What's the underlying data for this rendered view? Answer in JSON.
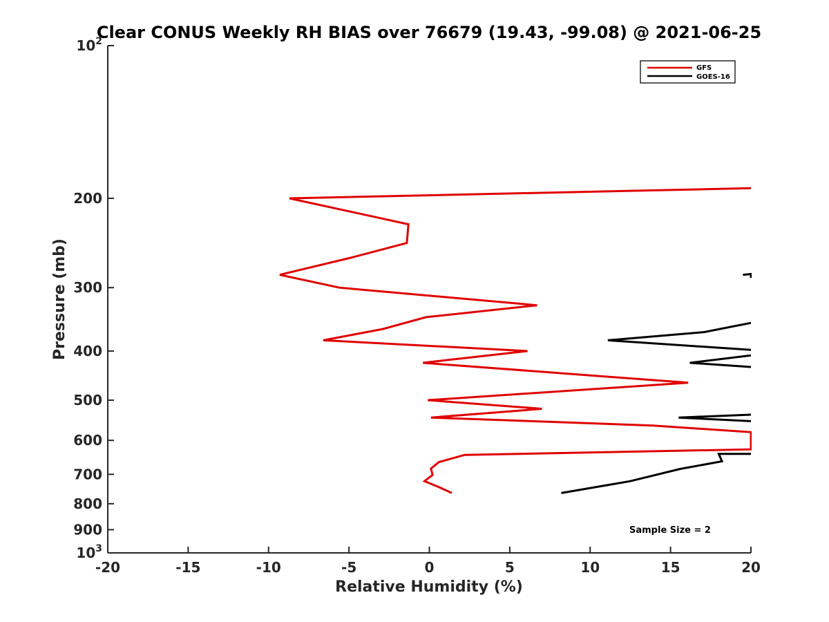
{
  "chart_data": {
    "type": "line",
    "title": "Clear CONUS Weekly RH BIAS over 76679 (19.43, -99.08) @ 2021-06-25",
    "xlabel": "Relative Humidity (%)",
    "ylabel": "Pressure (mb)",
    "xlim": [
      -20,
      20
    ],
    "ylim": [
      100,
      1000
    ],
    "yscale": "log",
    "y_reversed": true,
    "x_ticks": [
      -20,
      -15,
      -10,
      -5,
      0,
      5,
      10,
      15,
      20
    ],
    "x_tick_labels": [
      "-20",
      "-15",
      "-10",
      "-5",
      "0",
      "5",
      "10",
      "15",
      "20"
    ],
    "y_ticks": [
      100,
      200,
      300,
      400,
      500,
      600,
      700,
      800,
      900,
      1000
    ],
    "y_tick_labels": [
      {
        "base": "10",
        "exp": "2"
      },
      {
        "base": "200",
        "exp": ""
      },
      {
        "base": "300",
        "exp": ""
      },
      {
        "base": "400",
        "exp": ""
      },
      {
        "base": "500",
        "exp": ""
      },
      {
        "base": "600",
        "exp": ""
      },
      {
        "base": "700",
        "exp": ""
      },
      {
        "base": "800",
        "exp": ""
      },
      {
        "base": "900",
        "exp": ""
      },
      {
        "base": "10",
        "exp": "3"
      }
    ],
    "grid": false,
    "legend_position": "top-right",
    "series": [
      {
        "name": "GFS",
        "color": "#e00000",
        "points": [
          [
            20,
            191
          ],
          [
            -8.7,
            200
          ],
          [
            -1.3,
            225
          ],
          [
            -1.4,
            245
          ],
          [
            -4.9,
            262
          ],
          [
            -9.3,
            283
          ],
          [
            -5.6,
            300
          ],
          [
            6.7,
            325
          ],
          [
            -0.2,
            343
          ],
          [
            -2.9,
            362
          ],
          [
            -6.6,
            381
          ],
          [
            6.1,
            400
          ],
          [
            -0.4,
            422
          ],
          [
            16.1,
            462
          ],
          [
            -0.1,
            500
          ],
          [
            7.0,
            520
          ],
          [
            0.1,
            541
          ],
          [
            13.9,
            561
          ],
          [
            20,
            578
          ],
          [
            20,
            625
          ],
          [
            2.2,
            641
          ],
          [
            0.6,
            662
          ],
          [
            0.1,
            682
          ],
          [
            0.2,
            702
          ],
          [
            -0.3,
            722
          ],
          [
            0.6,
            742
          ],
          [
            1.4,
            762
          ]
        ]
      },
      {
        "name": "GOES-16",
        "color": "#000000",
        "points": [
          [
            19.5,
            283
          ],
          [
            20,
            282
          ],
          [
            20,
            287
          ],
          [
            null,
            null
          ],
          [
            20,
            352
          ],
          [
            17.1,
            367
          ],
          [
            11.1,
            381
          ],
          [
            20,
            398
          ],
          [
            null,
            null
          ],
          [
            20,
            408
          ],
          [
            16.2,
            422
          ],
          [
            20,
            430
          ],
          [
            null,
            null
          ],
          [
            20,
            534
          ],
          [
            15.5,
            541
          ],
          [
            20,
            550
          ],
          [
            null,
            null
          ],
          [
            20,
            638
          ],
          [
            18.0,
            638
          ],
          [
            18.2,
            660
          ],
          [
            15.6,
            683
          ],
          [
            12.5,
            722
          ],
          [
            8.2,
            762
          ]
        ]
      }
    ],
    "annotations": [
      {
        "text": "Sample Size = 2",
        "x": 15.5,
        "y": 900
      }
    ]
  }
}
